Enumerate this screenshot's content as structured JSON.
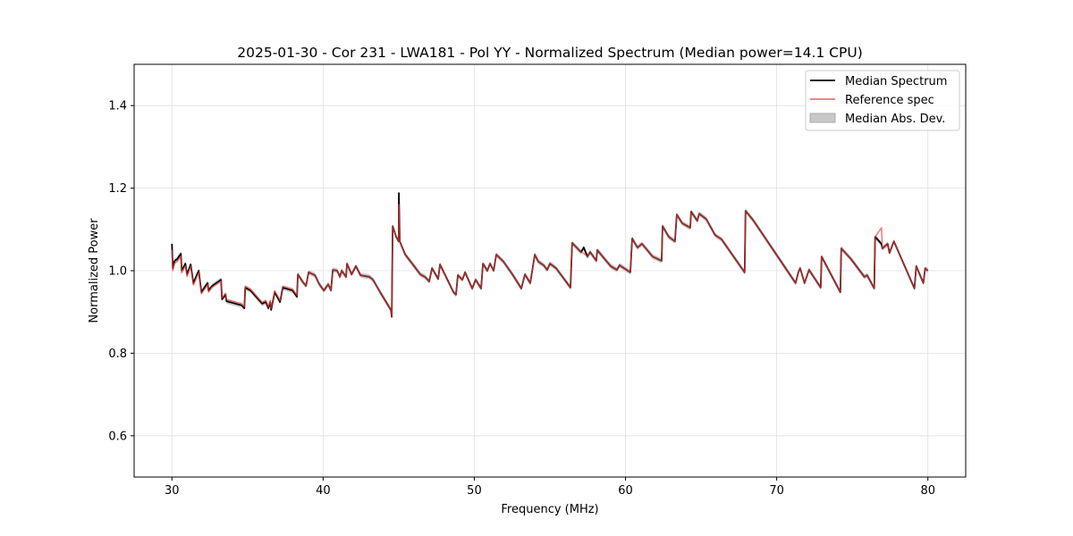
{
  "chart_data": {
    "type": "line",
    "title": "2025-01-30 - Cor 231 - LWA181 - Pol YY - Normalized Spectrum (Median power=14.1 CPU)",
    "xlabel": "Frequency (MHz)",
    "ylabel": "Normalized Power",
    "xlim": [
      27.5,
      82.5
    ],
    "ylim": [
      0.5,
      1.5
    ],
    "xticks": [
      30,
      40,
      50,
      60,
      70,
      80
    ],
    "xtick_labels": [
      "30",
      "40",
      "50",
      "60",
      "70",
      "80"
    ],
    "yticks": [
      0.6,
      0.8,
      1.0,
      1.2,
      1.4
    ],
    "ytick_labels": [
      "0.6",
      "0.8",
      "1.0",
      "1.2",
      "1.4"
    ],
    "grid": true,
    "legend_position": "top-right",
    "legend": [
      "Median Spectrum",
      "Reference spec",
      "Median Abs. Dev."
    ],
    "colors": {
      "median": "#000000",
      "reference": "#e8413f",
      "mad": "#bdbdbd"
    },
    "mad_halfwidth": 0.006,
    "x": [
      30.0,
      30.06,
      30.18,
      30.35,
      30.59,
      30.65,
      30.89,
      31.0,
      31.24,
      31.42,
      31.77,
      31.95,
      32.36,
      32.42,
      32.66,
      33.25,
      33.31,
      33.55,
      33.61,
      34.61,
      34.79,
      34.85,
      35.2,
      35.97,
      36.21,
      36.38,
      36.5,
      36.56,
      36.8,
      37.15,
      37.33,
      37.98,
      38.27,
      38.33,
      38.63,
      38.87,
      39.04,
      39.46,
      39.75,
      40.05,
      40.34,
      40.52,
      40.64,
      40.93,
      41.11,
      41.23,
      41.52,
      41.58,
      41.88,
      42.17,
      42.47,
      43.06,
      43.3,
      43.77,
      44.48,
      44.54,
      44.6,
      44.83,
      45.0,
      45.01,
      45.07,
      45.43,
      46.02,
      46.43,
      46.73,
      47.02,
      47.2,
      47.61,
      47.73,
      48.62,
      48.79,
      48.91,
      49.21,
      49.39,
      49.86,
      50.09,
      50.45,
      50.57,
      50.86,
      51.04,
      51.28,
      51.45,
      51.93,
      52.52,
      53.11,
      53.35,
      53.7,
      54.0,
      54.23,
      54.59,
      54.82,
      55.0,
      55.41,
      56.36,
      56.47,
      57.06,
      57.24,
      57.48,
      57.66,
      58.07,
      58.13,
      59.02,
      59.43,
      59.61,
      60.32,
      60.44,
      60.79,
      61.09,
      61.8,
      62.39,
      62.45,
      62.86,
      63.27,
      63.39,
      63.75,
      64.28,
      64.34,
      64.75,
      64.87,
      65.34,
      65.93,
      66.35,
      67.88,
      67.94,
      68.47,
      70.07,
      71.25,
      71.43,
      71.55,
      71.84,
      72.14,
      72.91,
      72.97,
      74.21,
      74.27,
      74.92,
      75.8,
      75.98,
      76.45,
      76.51,
      76.93,
      76.99,
      77.34,
      77.46,
      77.75,
      79.11,
      79.23,
      79.7,
      79.82,
      80.0
    ],
    "series": [
      {
        "name": "Median Spectrum",
        "values": [
          1.065,
          1.006,
          1.024,
          1.028,
          1.041,
          1.0,
          1.017,
          0.991,
          1.015,
          0.97,
          1.0,
          0.948,
          0.97,
          0.952,
          0.963,
          0.978,
          0.931,
          0.942,
          0.926,
          0.916,
          0.909,
          0.959,
          0.952,
          0.92,
          0.924,
          0.909,
          0.924,
          0.905,
          0.948,
          0.924,
          0.959,
          0.952,
          0.937,
          0.991,
          0.974,
          0.963,
          0.996,
          0.989,
          0.967,
          0.952,
          0.967,
          0.952,
          1.002,
          1.0,
          0.985,
          1.0,
          0.985,
          1.017,
          0.991,
          1.011,
          0.989,
          0.985,
          0.978,
          0.948,
          0.905,
          0.888,
          1.108,
          1.082,
          1.071,
          1.188,
          1.071,
          1.039,
          1.011,
          0.991,
          0.985,
          0.974,
          1.006,
          0.98,
          1.015,
          0.948,
          0.942,
          0.989,
          0.978,
          0.996,
          0.957,
          0.978,
          0.957,
          1.017,
          1.0,
          1.017,
          1.0,
          1.039,
          1.022,
          0.991,
          0.957,
          0.991,
          0.97,
          1.039,
          1.022,
          1.013,
          1.002,
          1.017,
          1.006,
          0.959,
          1.067,
          1.045,
          1.056,
          1.034,
          1.045,
          1.024,
          1.05,
          1.011,
          1.002,
          1.013,
          0.996,
          1.078,
          1.056,
          1.065,
          1.034,
          1.024,
          1.108,
          1.082,
          1.071,
          1.136,
          1.115,
          1.104,
          1.143,
          1.121,
          1.138,
          1.125,
          1.086,
          1.076,
          0.996,
          1.145,
          1.121,
          1.034,
          0.97,
          0.996,
          1.006,
          0.97,
          1.002,
          0.959,
          1.034,
          0.948,
          1.054,
          1.028,
          0.985,
          0.989,
          0.957,
          1.082,
          1.065,
          1.054,
          1.065,
          1.043,
          1.071,
          0.957,
          1.011,
          0.97,
          1.006,
          1.0
        ]
      },
      {
        "name": "Reference spec",
        "values": [
          1.05,
          1.0,
          1.018,
          1.022,
          1.035,
          0.995,
          1.012,
          0.986,
          1.01,
          0.965,
          0.995,
          0.944,
          0.966,
          0.948,
          0.96,
          0.975,
          0.934,
          0.945,
          0.93,
          0.92,
          0.913,
          0.962,
          0.955,
          0.923,
          0.928,
          0.913,
          0.928,
          0.909,
          0.951,
          0.928,
          0.962,
          0.955,
          0.94,
          0.991,
          0.974,
          0.963,
          0.996,
          0.989,
          0.967,
          0.952,
          0.967,
          0.952,
          1.002,
          1.0,
          0.985,
          1.0,
          0.985,
          1.017,
          0.991,
          1.011,
          0.989,
          0.985,
          0.978,
          0.948,
          0.905,
          0.888,
          1.108,
          1.082,
          1.071,
          1.16,
          1.071,
          1.039,
          1.011,
          0.991,
          0.985,
          0.974,
          1.006,
          0.98,
          1.015,
          0.948,
          0.942,
          0.989,
          0.978,
          0.996,
          0.957,
          0.978,
          0.957,
          1.017,
          1.0,
          1.017,
          1.0,
          1.039,
          1.022,
          0.991,
          0.957,
          0.991,
          0.97,
          1.039,
          1.022,
          1.013,
          1.002,
          1.017,
          1.006,
          0.959,
          1.067,
          1.045,
          1.042,
          1.034,
          1.045,
          1.024,
          1.05,
          1.011,
          1.002,
          1.013,
          0.996,
          1.078,
          1.056,
          1.065,
          1.034,
          1.024,
          1.108,
          1.082,
          1.071,
          1.136,
          1.115,
          1.104,
          1.143,
          1.121,
          1.138,
          1.125,
          1.086,
          1.076,
          0.996,
          1.145,
          1.121,
          1.034,
          0.97,
          0.996,
          1.006,
          0.97,
          1.002,
          0.959,
          1.034,
          0.948,
          1.054,
          1.028,
          0.985,
          0.989,
          0.957,
          1.082,
          1.104,
          1.054,
          1.065,
          1.043,
          1.071,
          0.957,
          1.011,
          0.97,
          1.006,
          1.0
        ]
      }
    ]
  }
}
